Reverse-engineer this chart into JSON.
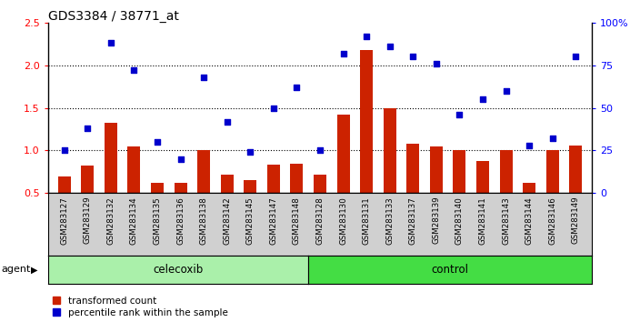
{
  "title": "GDS3384 / 38771_at",
  "samples": [
    "GSM283127",
    "GSM283129",
    "GSM283132",
    "GSM283134",
    "GSM283135",
    "GSM283136",
    "GSM283138",
    "GSM283142",
    "GSM283145",
    "GSM283147",
    "GSM283148",
    "GSM283128",
    "GSM283130",
    "GSM283131",
    "GSM283133",
    "GSM283137",
    "GSM283139",
    "GSM283140",
    "GSM283141",
    "GSM283143",
    "GSM283144",
    "GSM283146",
    "GSM283149"
  ],
  "transformed_count": [
    0.7,
    0.82,
    1.33,
    1.05,
    0.62,
    0.62,
    1.0,
    0.72,
    0.65,
    0.83,
    0.85,
    0.72,
    1.42,
    2.18,
    1.5,
    1.08,
    1.05,
    1.0,
    0.88,
    1.0,
    0.62,
    1.0,
    1.06
  ],
  "percentile_rank": [
    25,
    38,
    88,
    72,
    30,
    20,
    68,
    42,
    24,
    50,
    62,
    25,
    82,
    92,
    86,
    80,
    76,
    46,
    55,
    60,
    28,
    32,
    80
  ],
  "celecoxib_count": 11,
  "control_count": 12,
  "bar_color": "#cc2200",
  "dot_color": "#0000cc",
  "ylim_left": [
    0.5,
    2.5
  ],
  "ylim_right": [
    0,
    100
  ],
  "yticks_left": [
    0.5,
    1.0,
    1.5,
    2.0,
    2.5
  ],
  "yticks_right": [
    0,
    25,
    50,
    75,
    100
  ],
  "plot_bg": "#ffffff",
  "xtick_bg": "#d0d0d0",
  "celecoxib_color": "#aaf0aa",
  "control_color": "#44dd44",
  "agent_label": "agent",
  "celecoxib_label": "celecoxib",
  "control_label": "control",
  "legend1": "transformed count",
  "legend2": "percentile rank within the sample",
  "hgrid_values": [
    1.0,
    1.5,
    2.0
  ],
  "hgrid_color": "black",
  "hgrid_style": "dotted"
}
